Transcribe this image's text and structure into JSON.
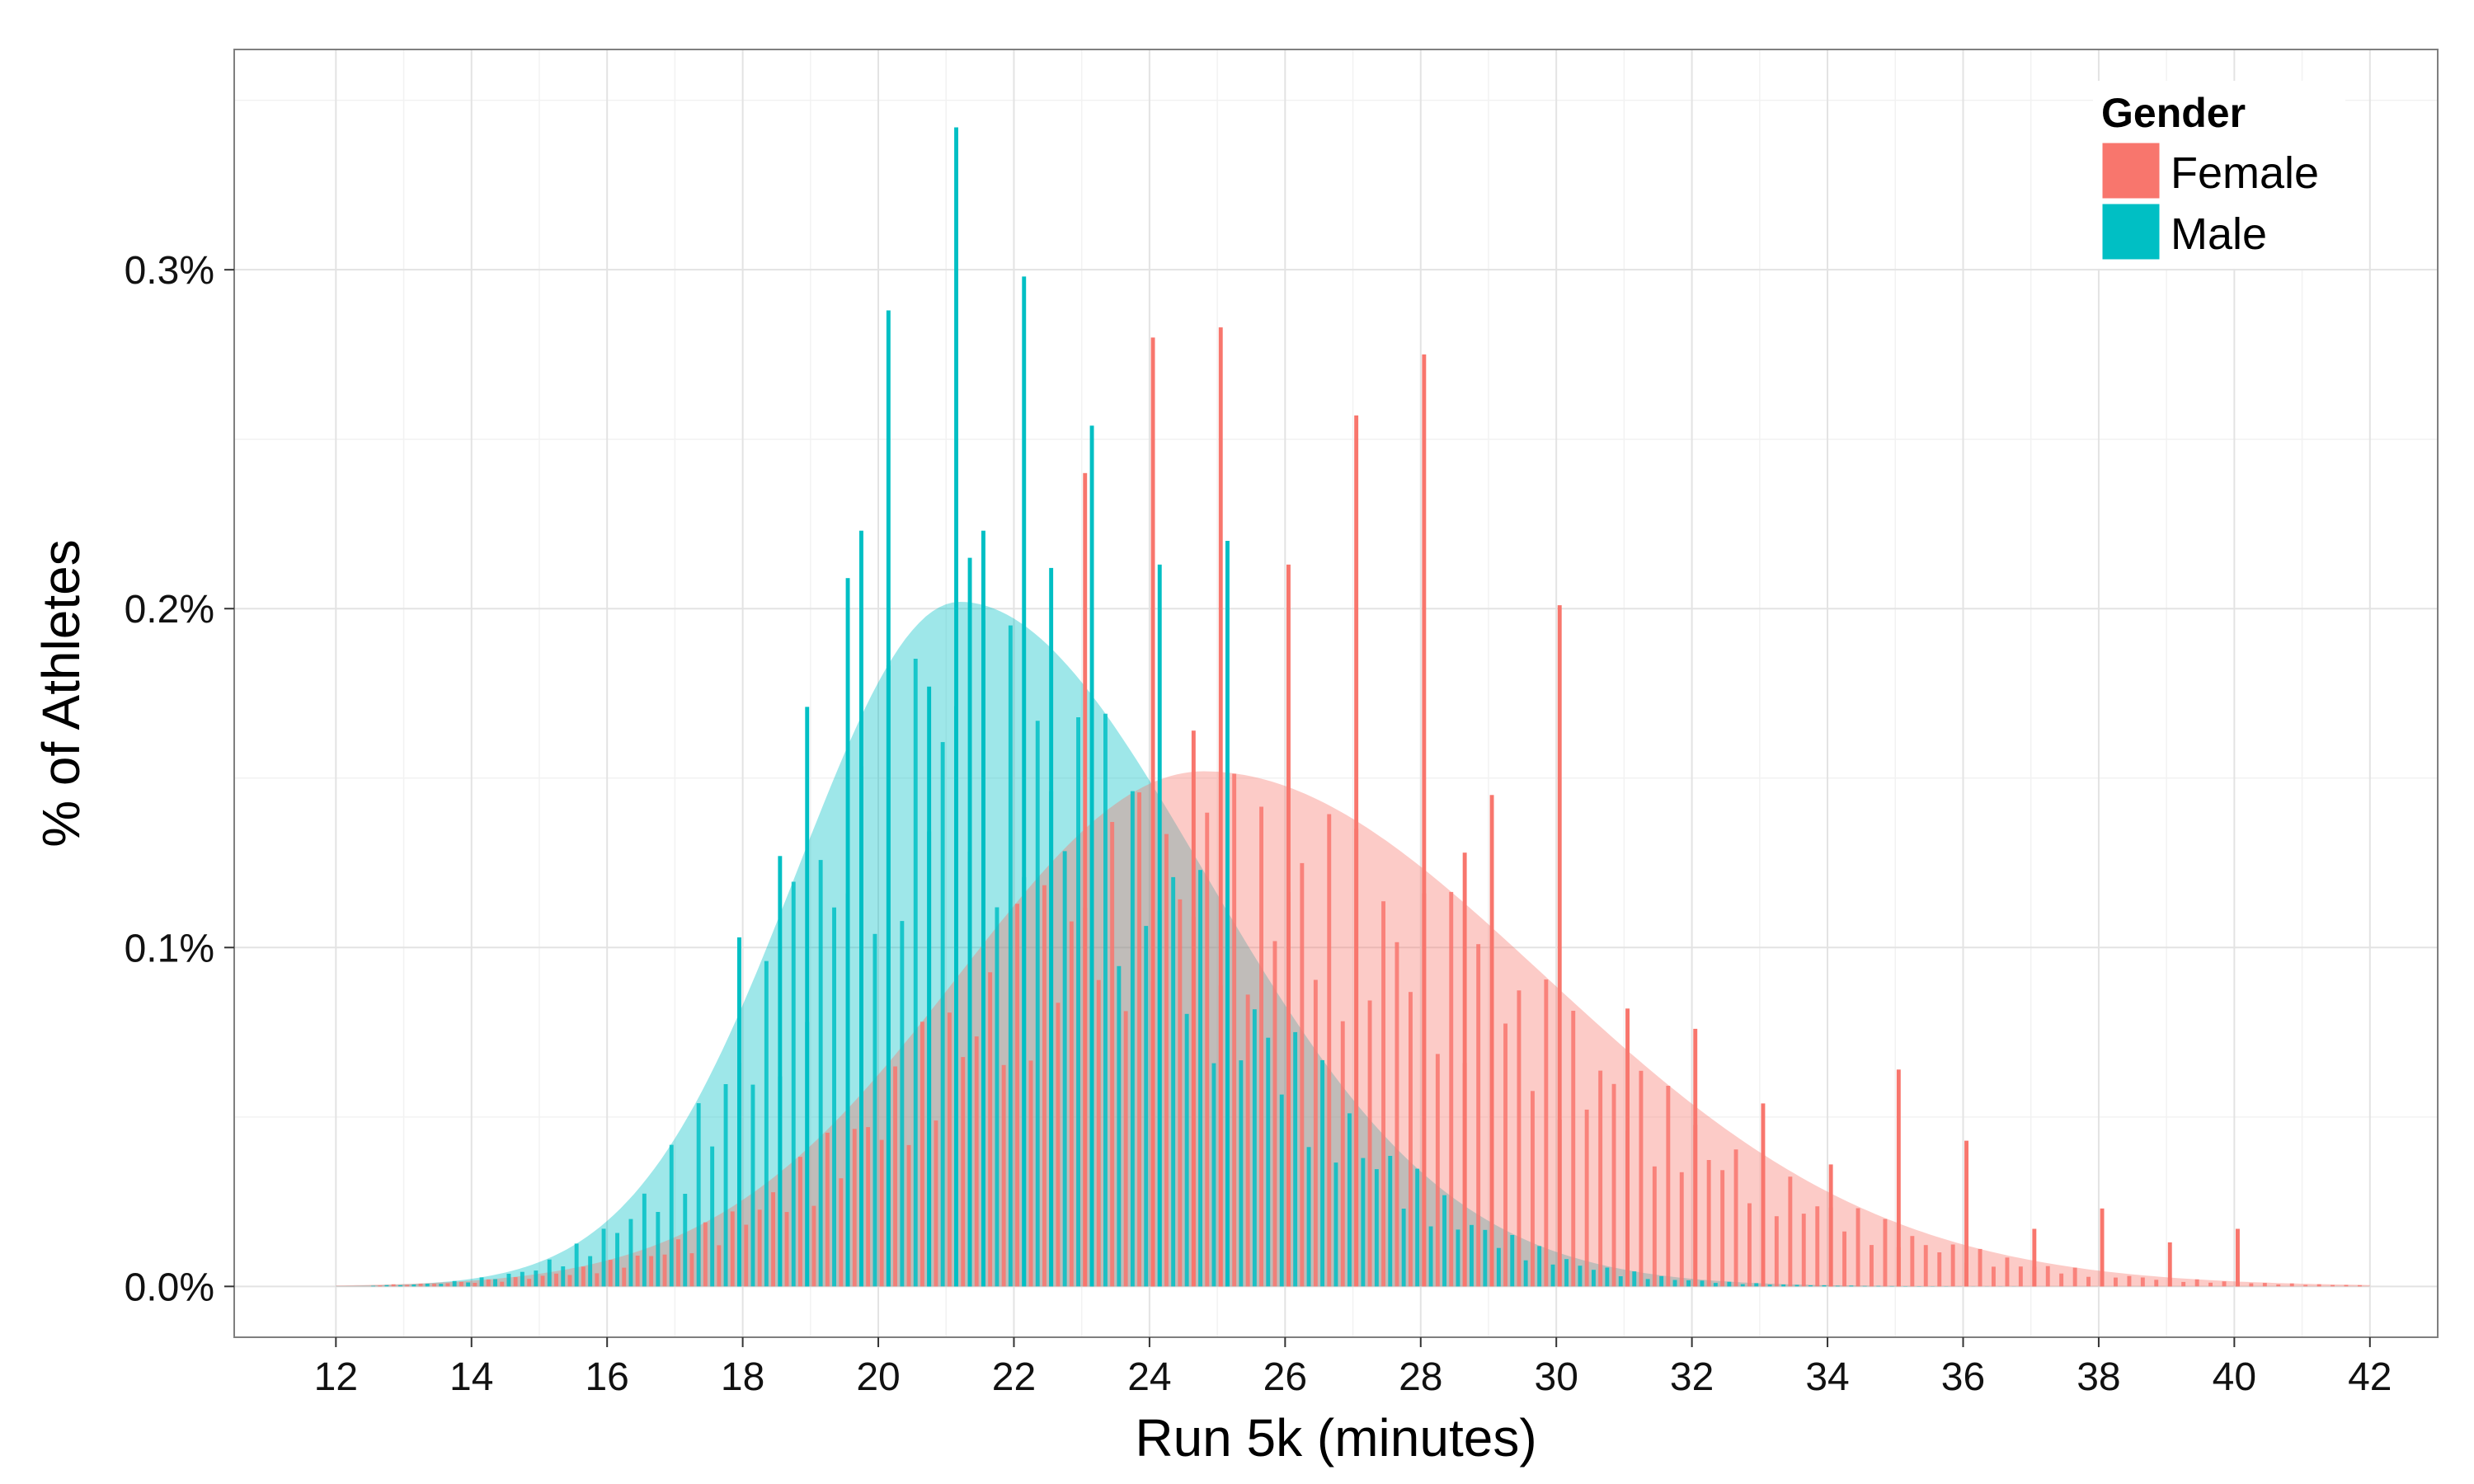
{
  "chart_data": {
    "type": "bar",
    "title": "",
    "xlabel": "Run 5k (minutes)",
    "ylabel": "% of Athletes",
    "xlim": [
      10.5,
      43
    ],
    "ylim": [
      -0.00015,
      0.00365
    ],
    "x_ticks": [
      12,
      14,
      16,
      18,
      20,
      22,
      24,
      26,
      28,
      30,
      32,
      34,
      36,
      38,
      40,
      42
    ],
    "x_tick_labels": [
      "12",
      "14",
      "16",
      "18",
      "20",
      "22",
      "24",
      "26",
      "28",
      "30",
      "32",
      "34",
      "36",
      "38",
      "40",
      "42"
    ],
    "y_ticks": [
      0,
      0.001,
      0.002,
      0.003
    ],
    "y_tick_labels": [
      "0.0%",
      "0.1%",
      "0.2%",
      "0.3%"
    ],
    "grid": true,
    "legend": {
      "title": "Gender",
      "position": "top-right",
      "entries": [
        {
          "label": "Female",
          "color": "#F8766D"
        },
        {
          "label": "Male",
          "color": "#00BFC4"
        }
      ]
    },
    "bin_width_minutes": 0.2,
    "series": [
      {
        "name": "Female",
        "color": "#F8766D",
        "density": {
          "mean": 24.8,
          "sd_left": 3.6,
          "sd_right": 5.0,
          "peak": 0.00152,
          "x_start": 12,
          "x_end": 42
        },
        "bars": [
          {
            "x": 23.0,
            "value": 0.0024
          },
          {
            "x": 24.0,
            "value": 0.0028
          },
          {
            "x": 24.6,
            "value": 0.00164
          },
          {
            "x": 25.0,
            "value": 0.00283
          },
          {
            "x": 26.0,
            "value": 0.00213
          },
          {
            "x": 27.0,
            "value": 0.00257
          },
          {
            "x": 28.0,
            "value": 0.00275
          },
          {
            "x": 28.6,
            "value": 0.00128
          },
          {
            "x": 29.0,
            "value": 0.00145
          },
          {
            "x": 30.0,
            "value": 0.00201
          },
          {
            "x": 31.0,
            "value": 0.00082
          },
          {
            "x": 32.0,
            "value": 0.00076
          },
          {
            "x": 33.0,
            "value": 0.00054
          },
          {
            "x": 34.0,
            "value": 0.00036
          },
          {
            "x": 35.0,
            "value": 0.00064
          },
          {
            "x": 36.0,
            "value": 0.00043
          },
          {
            "x": 37.0,
            "value": 0.00017
          },
          {
            "x": 38.0,
            "value": 0.00023
          },
          {
            "x": 39.0,
            "value": 0.00013
          },
          {
            "x": 40.0,
            "value": 0.00017
          }
        ]
      },
      {
        "name": "Male",
        "color": "#00BFC4",
        "density": {
          "mean": 21.2,
          "sd_left": 2.4,
          "sd_right": 3.6,
          "peak": 0.00202,
          "x_start": 12,
          "x_end": 42
        },
        "bars": [
          {
            "x": 18.0,
            "value": 0.00103
          },
          {
            "x": 18.6,
            "value": 0.00127
          },
          {
            "x": 19.0,
            "value": 0.00171
          },
          {
            "x": 19.6,
            "value": 0.00209
          },
          {
            "x": 19.8,
            "value": 0.00223
          },
          {
            "x": 20.2,
            "value": 0.00288
          },
          {
            "x": 20.8,
            "value": 0.00177
          },
          {
            "x": 21.2,
            "value": 0.00342
          },
          {
            "x": 21.6,
            "value": 0.00223
          },
          {
            "x": 21.4,
            "value": 0.00215
          },
          {
            "x": 22.2,
            "value": 0.00298
          },
          {
            "x": 22.6,
            "value": 0.00212
          },
          {
            "x": 23.2,
            "value": 0.00254
          },
          {
            "x": 24.2,
            "value": 0.00213
          },
          {
            "x": 25.2,
            "value": 0.0022
          }
        ]
      }
    ]
  }
}
